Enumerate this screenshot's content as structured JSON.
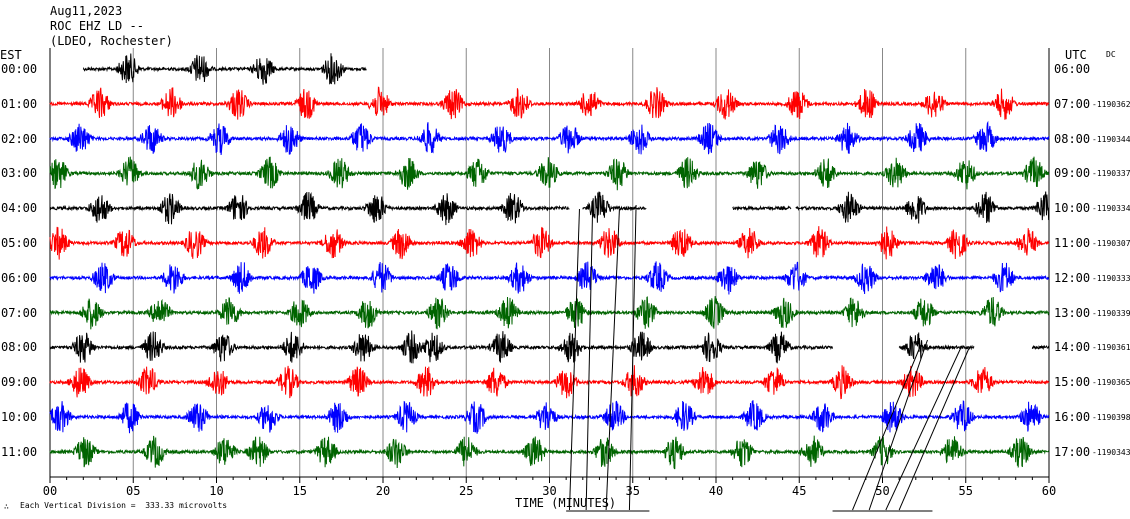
{
  "header": {
    "date": "Aug11,2023",
    "station": "ROC EHZ LD --",
    "network": "(LDEO, Rochester)"
  },
  "left_zone": "EST",
  "right_zone": "UTC",
  "dc_label": "DC",
  "xlabel": "TIME (MINUTES)",
  "footer": "Each Vertical Division =  333.33 microvolts",
  "chart_data": {
    "type": "line",
    "title": "Aug11,2023 ROC EHZ LD -- (LDEO, Rochester)",
    "xlabel": "TIME (MINUTES)",
    "x_ticks": [
      "00",
      "05",
      "10",
      "15",
      "20",
      "25",
      "30",
      "35",
      "40",
      "45",
      "50",
      "55",
      "60"
    ],
    "xlim": [
      0,
      60
    ],
    "vertical_grid": true,
    "colors": [
      "#000000",
      "#ff0000",
      "#0000ff",
      "#006400"
    ],
    "scale": "Each Vertical Division =  333.33 microvolts",
    "rows": [
      {
        "est": "00:00",
        "utc": "06:00",
        "dc": "",
        "color": "#000000",
        "segments": [
          [
            2,
            19
          ]
        ],
        "bursts": [
          4.7,
          9,
          12.8,
          17
        ]
      },
      {
        "est": "01:00",
        "utc": "07:00",
        "dc": "-1190362",
        "color": "#ff0000",
        "segments": [
          [
            0,
            60
          ]
        ],
        "bursts": [
          3,
          7.3,
          11.3,
          15.4,
          19.8,
          24.2,
          28.2,
          32.4,
          36.4,
          40.6,
          44.9,
          49.1,
          53.1,
          57.3
        ]
      },
      {
        "est": "02:00",
        "utc": "08:00",
        "dc": "-1190344",
        "color": "#0000ff",
        "segments": [
          [
            0,
            60
          ]
        ],
        "bursts": [
          1.8,
          6.1,
          10.2,
          14.4,
          18.7,
          22.8,
          27.1,
          31.2,
          35.4,
          39.6,
          43.8,
          47.9,
          52.1,
          56.2
        ]
      },
      {
        "est": "03:00",
        "utc": "09:00",
        "dc": "-1190337",
        "color": "#006400",
        "segments": [
          [
            0,
            60
          ]
        ],
        "bursts": [
          0.5,
          4.8,
          9,
          13.2,
          17.4,
          21.5,
          25.7,
          29.9,
          34.1,
          38.3,
          42.5,
          46.6,
          50.8,
          55,
          59.1
        ]
      },
      {
        "est": "04:00",
        "utc": "10:00",
        "dc": "-1190334",
        "color": "#000000",
        "segments": [
          [
            0,
            31.2
          ],
          [
            32,
            35.8
          ],
          [
            41,
            44.5
          ],
          [
            44.8,
            60
          ]
        ],
        "bursts": [
          3,
          7.2,
          11.3,
          15.5,
          19.6,
          23.8,
          27.8,
          33,
          37.7,
          48,
          52,
          56.2,
          59.8
        ]
      },
      {
        "est": "05:00",
        "utc": "11:00",
        "dc": "-1190307",
        "color": "#ff0000",
        "segments": [
          [
            0,
            60
          ]
        ],
        "bursts": [
          0.5,
          4.5,
          8.7,
          12.8,
          17,
          21.1,
          25.3,
          29.5,
          33.6,
          37.9,
          42,
          46.2,
          50.3,
          54.5,
          58.7
        ]
      },
      {
        "est": "06:00",
        "utc": "12:00",
        "dc": "-1190333",
        "color": "#0000ff",
        "segments": [
          [
            0,
            60
          ]
        ],
        "bursts": [
          3.2,
          7.4,
          11.5,
          15.7,
          19.9,
          24,
          28.2,
          32.3,
          36.5,
          40.7,
          44.8,
          49,
          53.2,
          57.3
        ]
      },
      {
        "est": "07:00",
        "utc": "13:00",
        "dc": "-1190339",
        "color": "#006400",
        "segments": [
          [
            0,
            60
          ]
        ],
        "bursts": [
          2.5,
          6.6,
          10.8,
          15,
          19.1,
          23.3,
          27.5,
          31.6,
          35.8,
          39.9,
          44.1,
          48.3,
          52.5,
          56.6
        ]
      },
      {
        "est": "08:00",
        "utc": "14:00",
        "dc": "-1190361",
        "color": "#000000",
        "segments": [
          [
            0,
            47
          ],
          [
            51,
            55.5
          ],
          [
            59,
            60
          ]
        ],
        "bursts": [
          2,
          6.2,
          10.4,
          14.6,
          18.8,
          21.7,
          23,
          27.1,
          31.3,
          35.5,
          39.7,
          43.8,
          52
        ]
      },
      {
        "est": "09:00",
        "utc": "15:00",
        "dc": "-1190365",
        "color": "#ff0000",
        "segments": [
          [
            0,
            60
          ]
        ],
        "bursts": [
          1.8,
          5.9,
          10.1,
          14.3,
          18.5,
          22.6,
          26.8,
          31,
          35.1,
          39.3,
          43.5,
          47.6,
          51.8,
          56
        ]
      },
      {
        "est": "10:00",
        "utc": "16:00",
        "dc": "-1190398",
        "color": "#0000ff",
        "segments": [
          [
            0,
            60
          ]
        ],
        "bursts": [
          0.6,
          4.8,
          8.9,
          13.1,
          17.3,
          21.4,
          25.6,
          29.8,
          33.9,
          38.1,
          42.3,
          46.4,
          50.6,
          54.8,
          58.9
        ]
      },
      {
        "est": "11:00",
        "utc": "17:00",
        "dc": "-1190343",
        "color": "#006400",
        "segments": [
          [
            0,
            60
          ]
        ],
        "bursts": [
          2.1,
          6.3,
          10.5,
          12.5,
          16.6,
          20.8,
          25,
          29.1,
          33.3,
          37.5,
          41.6,
          45.8,
          50,
          54.2,
          58.3
        ]
      }
    ]
  }
}
